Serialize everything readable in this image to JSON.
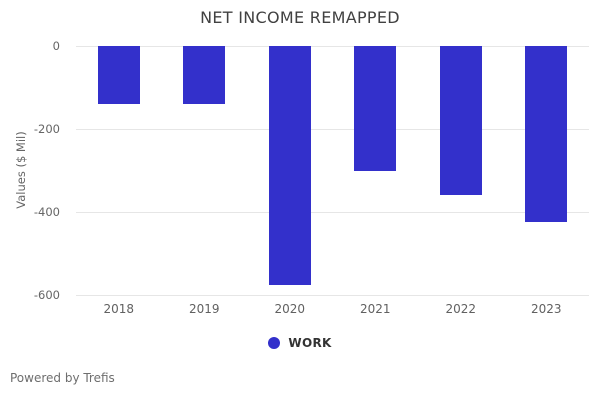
{
  "chart": {
    "title": "NET INCOME REMAPPED",
    "ylabel": "Values ($ Mil)",
    "legend_label": "WORK"
  },
  "footer": {
    "text": "Powered by Trefis"
  },
  "colors": {
    "bar": "#3330cb",
    "grid": "#e6e6e6",
    "title_text": "#414141",
    "axis_text": "#666666",
    "x_label_text": "#616161",
    "legend_text": "#333333",
    "footer_text": "#6e6e6e",
    "background": "#ffffff"
  },
  "chart_data": {
    "type": "bar",
    "categories": [
      "2018",
      "2019",
      "2020",
      "2021",
      "2022",
      "2023"
    ],
    "series": [
      {
        "name": "WORK",
        "values": [
          -140,
          -140,
          -575,
          -300,
          -360,
          -425
        ]
      }
    ],
    "title": "NET INCOME REMAPPED",
    "xlabel": "",
    "ylabel": "Values ($ Mil)",
    "ylim": [
      -600,
      0
    ],
    "yticks": [
      0,
      -200,
      -400,
      -600
    ],
    "grid": true,
    "legend_position": "bottom"
  }
}
